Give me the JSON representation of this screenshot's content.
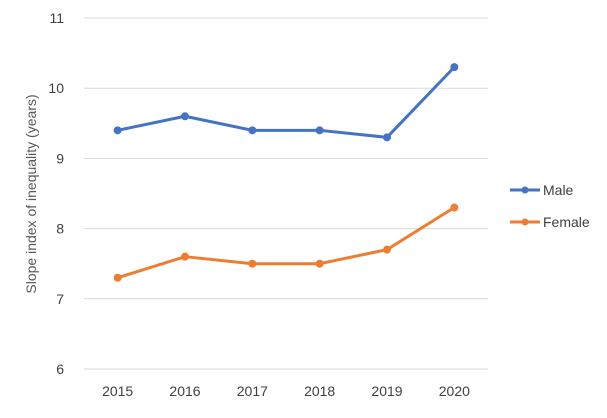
{
  "chart_data": {
    "type": "line",
    "title": "",
    "xlabel": "",
    "ylabel": "Slope index of inequality (years)",
    "categories": [
      "2015",
      "2016",
      "2017",
      "2018",
      "2019",
      "2020"
    ],
    "ylim": [
      6,
      11
    ],
    "yticks": [
      "6",
      "7",
      "8",
      "9",
      "10",
      "11"
    ],
    "grid": true,
    "legend_position": "right",
    "series": [
      {
        "name": "Male",
        "color": "#4472c4",
        "values": [
          9.4,
          9.6,
          9.4,
          9.4,
          9.3,
          10.3
        ]
      },
      {
        "name": "Female",
        "color": "#ed7d31",
        "values": [
          7.3,
          7.6,
          7.5,
          7.5,
          7.7,
          8.3
        ]
      }
    ]
  }
}
